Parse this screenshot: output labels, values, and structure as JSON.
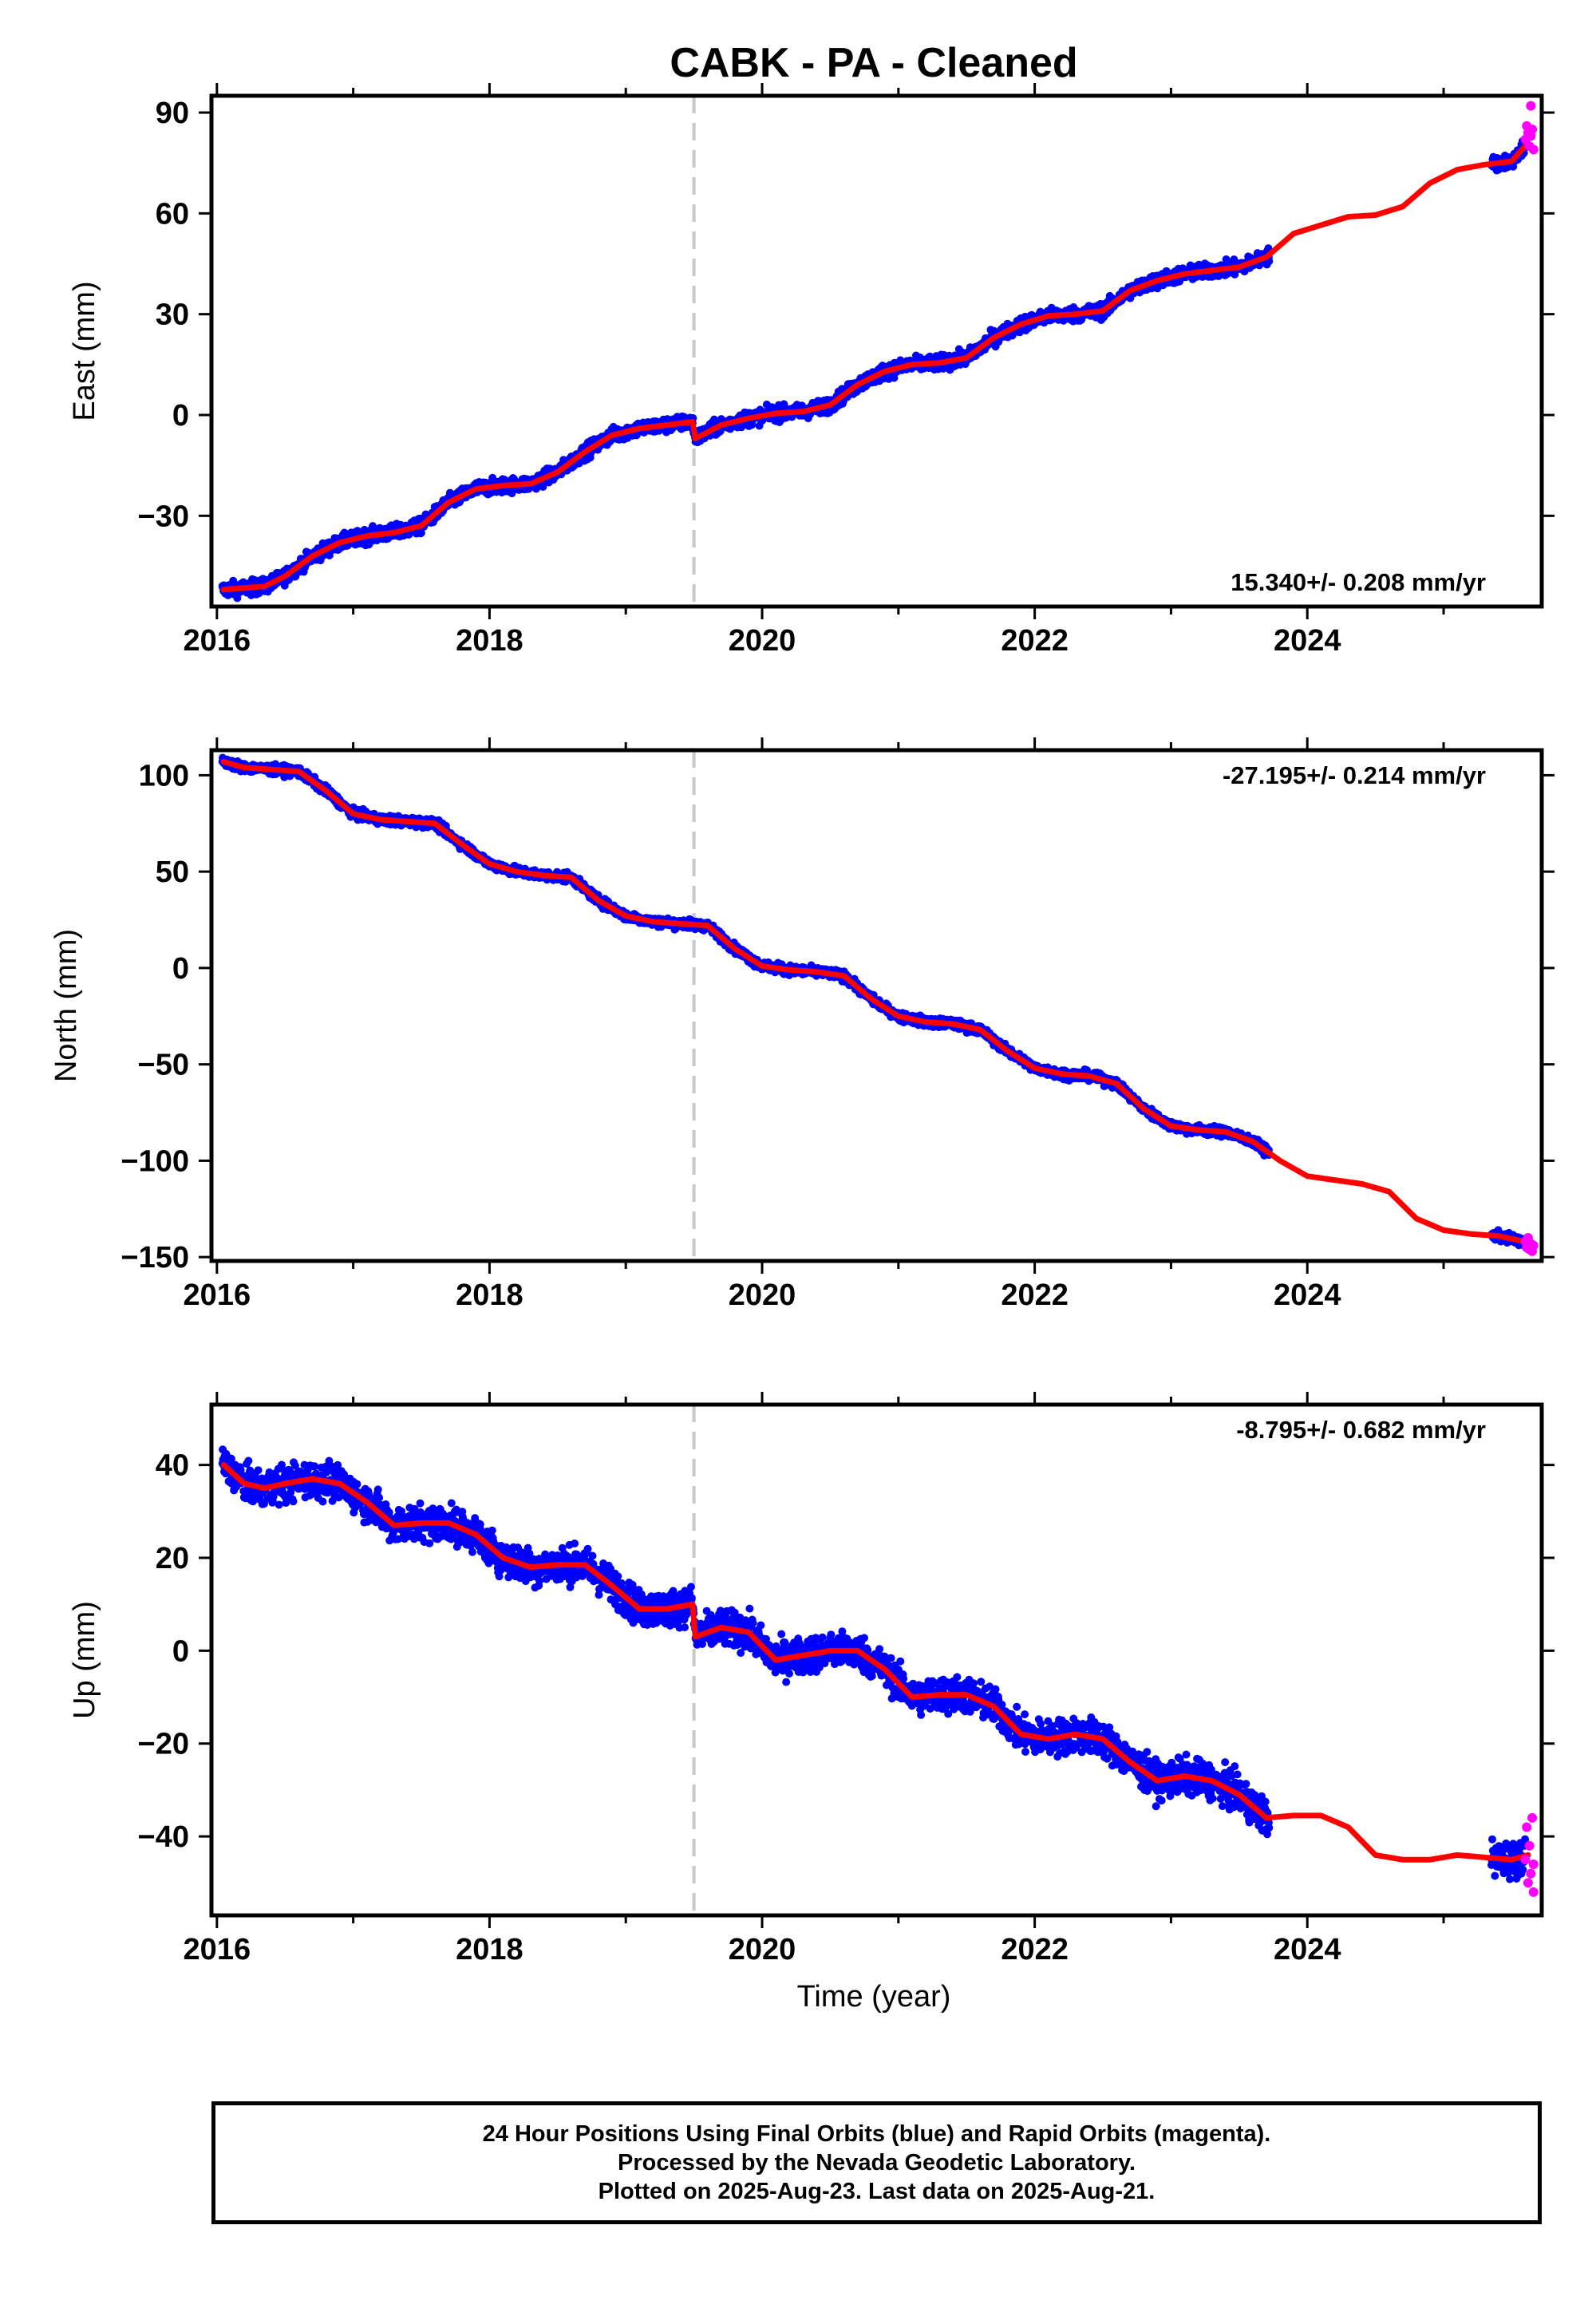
{
  "title": "CABK  - PA - Cleaned",
  "xlabel": "Time (year)",
  "footer": {
    "line1": "24 Hour Positions Using Final Orbits (blue) and Rapid Orbits (magenta).",
    "line2": "Processed by the Nevada Geodetic Laboratory.",
    "line3": "Plotted on 2025-Aug-23. Last data on 2025-Aug-21."
  },
  "colors": {
    "final_orbits": "#0000ff",
    "rapid_orbits": "#ff00ff",
    "model": "#ff0000",
    "event_line": "#c8c8c8",
    "frame": "#000000"
  },
  "chart_data": [
    {
      "type": "scatter",
      "ylabel": "East (mm)",
      "rate_label": "15.340+/- 0.208 mm/yr",
      "rate_position": "bottom-right",
      "xlim": [
        2015.96,
        2025.72
      ],
      "ylim": [
        -57,
        95
      ],
      "xticks": [
        2016,
        2018,
        2020,
        2022,
        2024
      ],
      "yticks": [
        -30,
        0,
        30,
        60,
        90
      ],
      "ytick_labels": [
        "−30",
        "0",
        "30",
        "60",
        "90"
      ],
      "event_lines": [
        2019.5
      ],
      "model": {
        "x": [
          2016.05,
          2016.2,
          2016.35,
          2016.5,
          2016.7,
          2016.9,
          2017.1,
          2017.3,
          2017.5,
          2017.7,
          2017.9,
          2018.1,
          2018.3,
          2018.5,
          2018.7,
          2018.9,
          2019.1,
          2019.3,
          2019.49,
          2019.51,
          2019.7,
          2019.9,
          2020.1,
          2020.3,
          2020.5,
          2020.7,
          2020.9,
          2021.1,
          2021.3,
          2021.5,
          2021.7,
          2021.9,
          2022.1,
          2022.3,
          2022.5,
          2022.7,
          2022.9,
          2023.1,
          2023.3,
          2023.5,
          2023.7,
          2023.9,
          2024.1,
          2024.3,
          2024.5,
          2024.7,
          2024.9,
          2025.1,
          2025.3,
          2025.5,
          2025.62
        ],
        "y": [
          -52,
          -51.5,
          -51,
          -48,
          -42,
          -38,
          -36,
          -35,
          -33,
          -26,
          -22,
          -21,
          -20.5,
          -17,
          -11,
          -6,
          -4,
          -3,
          -2,
          -7,
          -3,
          -1,
          0.5,
          1,
          3,
          9,
          13,
          15,
          15.5,
          17,
          23,
          27,
          29.5,
          30,
          31,
          37,
          40,
          42,
          43,
          44,
          47,
          54,
          56.5,
          59,
          59.5,
          62,
          69,
          73,
          74.5,
          75.5,
          81
        ]
      },
      "final_orbits": {
        "x_range": [
          2016.04,
          2025.6
        ],
        "gap": [
          2023.72,
          2025.35
        ],
        "center": "model",
        "scatter_mm": 1.8
      },
      "rapid_orbits": {
        "x": [
          2025.6,
          2025.61,
          2025.62,
          2025.63,
          2025.64,
          2025.64,
          2025.65,
          2025.66
        ],
        "y": [
          82,
          86,
          84,
          80,
          83,
          92,
          85,
          79
        ]
      }
    },
    {
      "type": "scatter",
      "ylabel": "North (mm)",
      "rate_label": "-27.195+/- 0.214 mm/yr",
      "rate_position": "top-right",
      "xlim": [
        2015.96,
        2025.72
      ],
      "ylim": [
        -152,
        113
      ],
      "xticks": [
        2016,
        2018,
        2020,
        2022,
        2024
      ],
      "yticks": [
        -150,
        -100,
        -50,
        0,
        50,
        100
      ],
      "ytick_labels": [
        "−150",
        "−100",
        "−50",
        "0",
        "50",
        "100"
      ],
      "event_lines": [
        2019.5
      ],
      "model": {
        "x": [
          2016.05,
          2016.2,
          2016.4,
          2016.6,
          2016.8,
          2017.0,
          2017.2,
          2017.4,
          2017.6,
          2017.8,
          2018.0,
          2018.2,
          2018.4,
          2018.6,
          2018.8,
          2019.0,
          2019.2,
          2019.4,
          2019.6,
          2019.8,
          2020.0,
          2020.2,
          2020.4,
          2020.6,
          2020.8,
          2021.0,
          2021.2,
          2021.4,
          2021.6,
          2021.8,
          2022.0,
          2022.2,
          2022.4,
          2022.6,
          2022.8,
          2023.0,
          2023.2,
          2023.4,
          2023.6,
          2023.8,
          2024.0,
          2024.2,
          2024.4,
          2024.6,
          2024.8,
          2025.0,
          2025.2,
          2025.4,
          2025.6
        ],
        "y": [
          107,
          104,
          103,
          102,
          92,
          80,
          77,
          76,
          75,
          64,
          54,
          50,
          48,
          47,
          35,
          27,
          24,
          23,
          22,
          10,
          1,
          -1,
          -2,
          -4,
          -16,
          -25,
          -28,
          -29,
          -32,
          -43,
          -52,
          -55,
          -56,
          -60,
          -73,
          -82,
          -84,
          -85,
          -90,
          -100,
          -108,
          -110,
          -112,
          -116,
          -130,
          -136,
          -138,
          -139,
          -142
        ]
      },
      "final_orbits": {
        "x_range": [
          2016.04,
          2025.6
        ],
        "gap": [
          2023.72,
          2025.35
        ],
        "center": "model",
        "scatter_mm": 2.0
      },
      "rapid_orbits": {
        "x": [
          2025.6,
          2025.61,
          2025.62,
          2025.63,
          2025.64,
          2025.65,
          2025.66
        ],
        "y": [
          -142,
          -145,
          -140,
          -146,
          -143,
          -147,
          -144
        ]
      }
    },
    {
      "type": "scatter",
      "ylabel": "Up (mm)",
      "rate_label": "-8.795+/- 0.682 mm/yr",
      "rate_position": "top-right",
      "xlim": [
        2015.96,
        2025.72
      ],
      "ylim": [
        -57,
        53
      ],
      "xticks": [
        2016,
        2018,
        2020,
        2022,
        2024
      ],
      "xtick_labels": [
        "2016",
        "2018",
        "2020",
        "2022",
        "2024"
      ],
      "yticks": [
        -40,
        -20,
        0,
        20,
        40
      ],
      "ytick_labels": [
        "−40",
        "−20",
        "0",
        "20",
        "40"
      ],
      "event_lines": [
        2019.5
      ],
      "model": {
        "x": [
          2016.05,
          2016.2,
          2016.35,
          2016.5,
          2016.7,
          2016.9,
          2017.1,
          2017.3,
          2017.5,
          2017.7,
          2017.9,
          2018.1,
          2018.3,
          2018.5,
          2018.7,
          2018.9,
          2019.1,
          2019.3,
          2019.49,
          2019.51,
          2019.7,
          2019.9,
          2020.1,
          2020.3,
          2020.5,
          2020.7,
          2020.9,
          2021.1,
          2021.3,
          2021.5,
          2021.7,
          2021.9,
          2022.1,
          2022.3,
          2022.5,
          2022.7,
          2022.9,
          2023.1,
          2023.3,
          2023.5,
          2023.7,
          2023.9,
          2024.1,
          2024.3,
          2024.5,
          2024.7,
          2024.9,
          2025.1,
          2025.3,
          2025.5,
          2025.62
        ],
        "y": [
          40,
          36,
          35,
          36,
          37,
          36,
          32,
          27,
          27.5,
          27.5,
          25,
          20,
          18,
          18.5,
          18.5,
          14,
          9,
          9,
          10,
          3,
          5,
          4,
          -2,
          -1,
          0,
          0,
          -4,
          -10,
          -9.5,
          -9.5,
          -12,
          -18,
          -19,
          -18,
          -19,
          -24,
          -28,
          -27,
          -28,
          -31,
          -36,
          -35.5,
          -35.5,
          -38,
          -44,
          -45,
          -45,
          -44,
          -44.5,
          -45,
          -44
        ]
      },
      "final_orbits": {
        "x_range": [
          2016.04,
          2025.6
        ],
        "gap": [
          2023.72,
          2025.35
        ],
        "center": "model",
        "scatter_mm": 3.2
      },
      "rapid_orbits": {
        "x": [
          2025.6,
          2025.61,
          2025.62,
          2025.63,
          2025.64,
          2025.65,
          2025.66,
          2025.66
        ],
        "y": [
          -45,
          -38,
          -50,
          -42,
          -48,
          -36,
          -46,
          -52
        ]
      }
    }
  ]
}
